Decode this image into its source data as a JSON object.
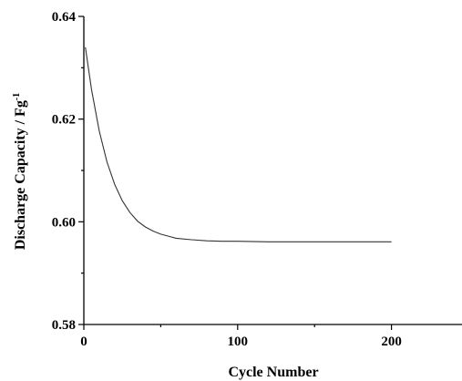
{
  "chart_data": {
    "type": "line",
    "xlabel": "Cycle Number",
    "ylabel": "Discharge Capacity / Fg",
    "ylabel_superscript": "-1",
    "xlim": [
      0,
      250
    ],
    "ylim": [
      0.58,
      0.64
    ],
    "x_ticks": [
      0,
      100,
      200
    ],
    "x_tick_labels": [
      "0",
      "100",
      "200"
    ],
    "y_ticks": [
      0.58,
      0.6,
      0.62,
      0.64
    ],
    "y_tick_labels": [
      "0.58",
      "0.60",
      "0.62",
      "0.64"
    ],
    "grid": false,
    "legend": "none",
    "series": [
      {
        "color": "#333333",
        "x": [
          1,
          5,
          10,
          15,
          20,
          25,
          30,
          35,
          40,
          45,
          50,
          55,
          60,
          70,
          80,
          90,
          100,
          120,
          140,
          160,
          180,
          200
        ],
        "y": [
          0.634,
          0.6258,
          0.6177,
          0.6117,
          0.6073,
          0.6041,
          0.6018,
          0.6001,
          0.599,
          0.5982,
          0.5976,
          0.5972,
          0.5968,
          0.5965,
          0.5963,
          0.5962,
          0.5962,
          0.5961,
          0.5961,
          0.5961,
          0.5961,
          0.5961
        ]
      }
    ]
  }
}
